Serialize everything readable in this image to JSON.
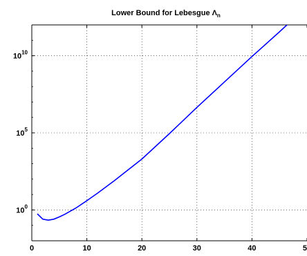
{
  "chart_data": {
    "type": "line",
    "title": "Lower Bound for Lebesgue",
    "title_symbol": "Λ",
    "title_subscript": "n",
    "xlabel": "",
    "ylabel": "",
    "xlim": [
      0,
      50
    ],
    "ylim_exp": [
      -2,
      12
    ],
    "y_scale": "log",
    "grid": true,
    "x_ticks": [
      {
        "value": 0,
        "label": "0"
      },
      {
        "value": 10,
        "label": "10"
      },
      {
        "value": 20,
        "label": "20"
      },
      {
        "value": 30,
        "label": "30"
      },
      {
        "value": 40,
        "label": "40"
      },
      {
        "value": 50,
        "label": "50"
      }
    ],
    "y_ticks": [
      {
        "exp": 0,
        "base": "10",
        "sup": "0"
      },
      {
        "exp": 5,
        "base": "10",
        "sup": "5"
      },
      {
        "exp": 10,
        "base": "10",
        "sup": "10"
      }
    ],
    "series": [
      {
        "color": "#0000ff",
        "x": [
          1,
          2,
          3,
          4,
          5,
          6,
          7,
          8,
          10,
          12,
          15,
          20,
          25,
          30,
          35,
          40,
          45,
          50
        ],
        "log10_y": [
          -0.25,
          -0.6,
          -0.66,
          -0.6,
          -0.45,
          -0.28,
          -0.08,
          0.12,
          0.6,
          1.1,
          1.9,
          3.3,
          4.95,
          6.65,
          8.3,
          9.95,
          11.55,
          13.2
        ]
      }
    ]
  }
}
